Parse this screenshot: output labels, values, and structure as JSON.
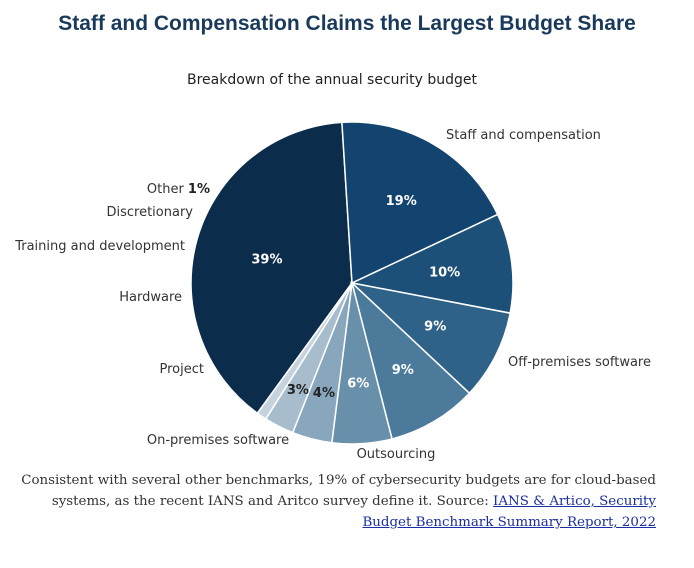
{
  "title": "Staff and Compensation Claims the Largest Budget Share",
  "chart_data": {
    "type": "pie",
    "subtitle": "Breakdown of the annual security budget",
    "categories": [
      "Staff and compensation",
      "Off-premises software",
      "Outsourcing",
      "On-premises software",
      "Project",
      "Hardware",
      "Training and development",
      "Discretionary",
      "Other"
    ],
    "values": [
      39,
      19,
      10,
      9,
      9,
      6,
      4,
      3,
      1
    ],
    "value_labels": [
      "39%",
      "19%",
      "10%",
      "9%",
      "9%",
      "6%",
      "4%",
      "3%",
      "1%"
    ],
    "colors": [
      "#0b2c4b",
      "#134470",
      "#1d5079",
      "#2e6288",
      "#4b7a9b",
      "#6890ab",
      "#88a7bd",
      "#a7bdce",
      "#c6d3de"
    ],
    "label_colors": [
      "#ffffff",
      "#ffffff",
      "#ffffff",
      "#ffffff",
      "#ffffff",
      "#ffffff",
      "#222222",
      "#222222",
      "#222222"
    ]
  },
  "caption": {
    "text": "Consistent with several other benchmarks, 19% of cybersecurity budgets are for cloud-based systems, as the recent IANS and Aritco survey define it. Source:",
    "link_text": "IANS & Artico, Security Budget Benchmark Summary Report, 2022"
  }
}
